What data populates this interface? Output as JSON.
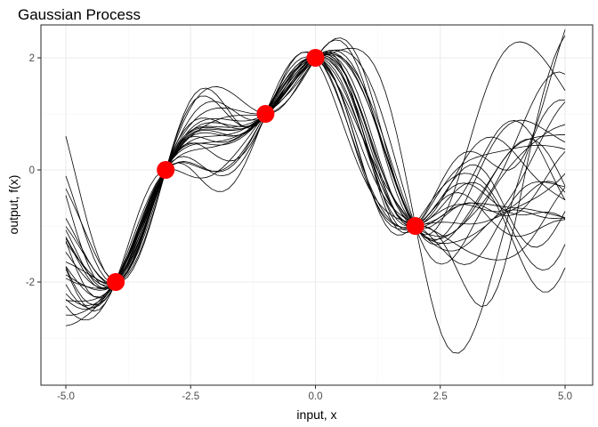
{
  "chart_data": {
    "type": "line",
    "title": "Gaussian Process",
    "xlabel": "input, x",
    "ylabel": "output, f(x)",
    "xlim": [
      -5.0,
      5.0
    ],
    "ylim": [
      -3.6,
      2.6
    ],
    "x_ticks": [
      -5.0,
      -2.5,
      0.0,
      2.5,
      5.0
    ],
    "x_tick_labels": [
      "-5.0",
      "-2.5",
      "0.0",
      "2.5",
      "5.0"
    ],
    "y_ticks": [
      -2,
      0,
      2
    ],
    "y_tick_labels": [
      "-2",
      "0",
      "2"
    ],
    "grid": true,
    "legend": false,
    "observations": {
      "x": [
        -4,
        -3,
        -1,
        0,
        2
      ],
      "y": [
        -2,
        0,
        1,
        2,
        -1
      ],
      "color": "#ff0000"
    },
    "samples": {
      "count": 25,
      "x_range": [
        -5,
        5
      ],
      "color": "#000000",
      "description": "posterior function draws of a Gaussian process passing through the observed points"
    }
  }
}
